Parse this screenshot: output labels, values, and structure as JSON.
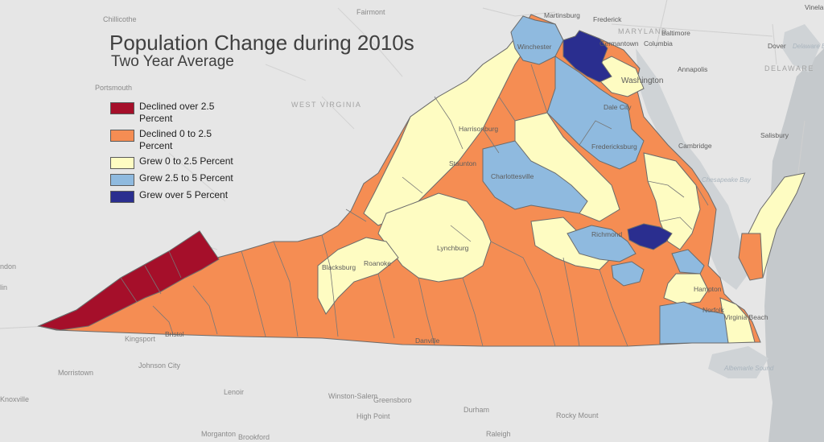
{
  "map": {
    "title": "Population Change during 2010s",
    "subtitle": "Two Year Average",
    "legend": [
      {
        "label": "Declined over 2.5 Percent",
        "color": "#a50f2a"
      },
      {
        "label": "Declined 0 to 2.5 Percent",
        "color": "#f58d53"
      },
      {
        "label": "Grew 0 to 2.5 Percent",
        "color": "#fefcc2"
      },
      {
        "label": "Grew 2.5 to 5 Percent",
        "color": "#8fbadf"
      },
      {
        "label": "Grew over 5 Percent",
        "color": "#2a2e8f"
      }
    ],
    "state_labels": {
      "maryland": "MARYLAND",
      "west_virginia": "WEST VIRGINIA",
      "delaware": "DELAWARE"
    },
    "water_labels": {
      "chesapeake_bay": "Chesapeake Bay",
      "albemarle_sound": "Albemarle Sound",
      "delaware_bay": "Delaware Bay"
    },
    "city_labels": {
      "chillicothe": "Chillicothe",
      "fairmont": "Fairmont",
      "martinsburg": "Martinsburg",
      "frederick": "Frederick",
      "germantown": "Germantown",
      "baltimore": "Baltimore",
      "columbia": "Columbia",
      "dover": "Dover",
      "vineland": "Vinela",
      "winchester": "Winchester",
      "washington": "Washington",
      "annapolis": "Annapolis",
      "portsmouth_oh": "Portsmouth",
      "dale_city": "Dale City",
      "harrisonburg": "Harrisonburg",
      "fredericksburg": "Fredericksburg",
      "salisbury": "Salisbury",
      "cambridge": "Cambridge",
      "staunton": "Staunton",
      "charlottesville": "Charlottesville",
      "richmond": "Richmond",
      "lynchburg": "Lynchburg",
      "blacksburg": "Blacksburg",
      "roanoke": "Roanoke",
      "hampton": "Hampton",
      "norfolk": "Norfolk",
      "virginia_beach": "Virginia Beach",
      "danville": "Danville",
      "bristol": "Bristol",
      "kingsport": "Kingsport",
      "johnson_city": "Johnson City",
      "morristown": "Morristown",
      "knoxville": "Knoxville",
      "lenoir": "Lenoir",
      "winston_salem": "Winston-Salem",
      "greensboro": "Greensboro",
      "high_point": "High Point",
      "durham": "Durham",
      "rocky_mount": "Rocky Mount",
      "raleigh": "Raleigh",
      "morganton": "Morganton",
      "brookford": "Brookford",
      "ndon": "ndon",
      "lin": "lin"
    }
  }
}
